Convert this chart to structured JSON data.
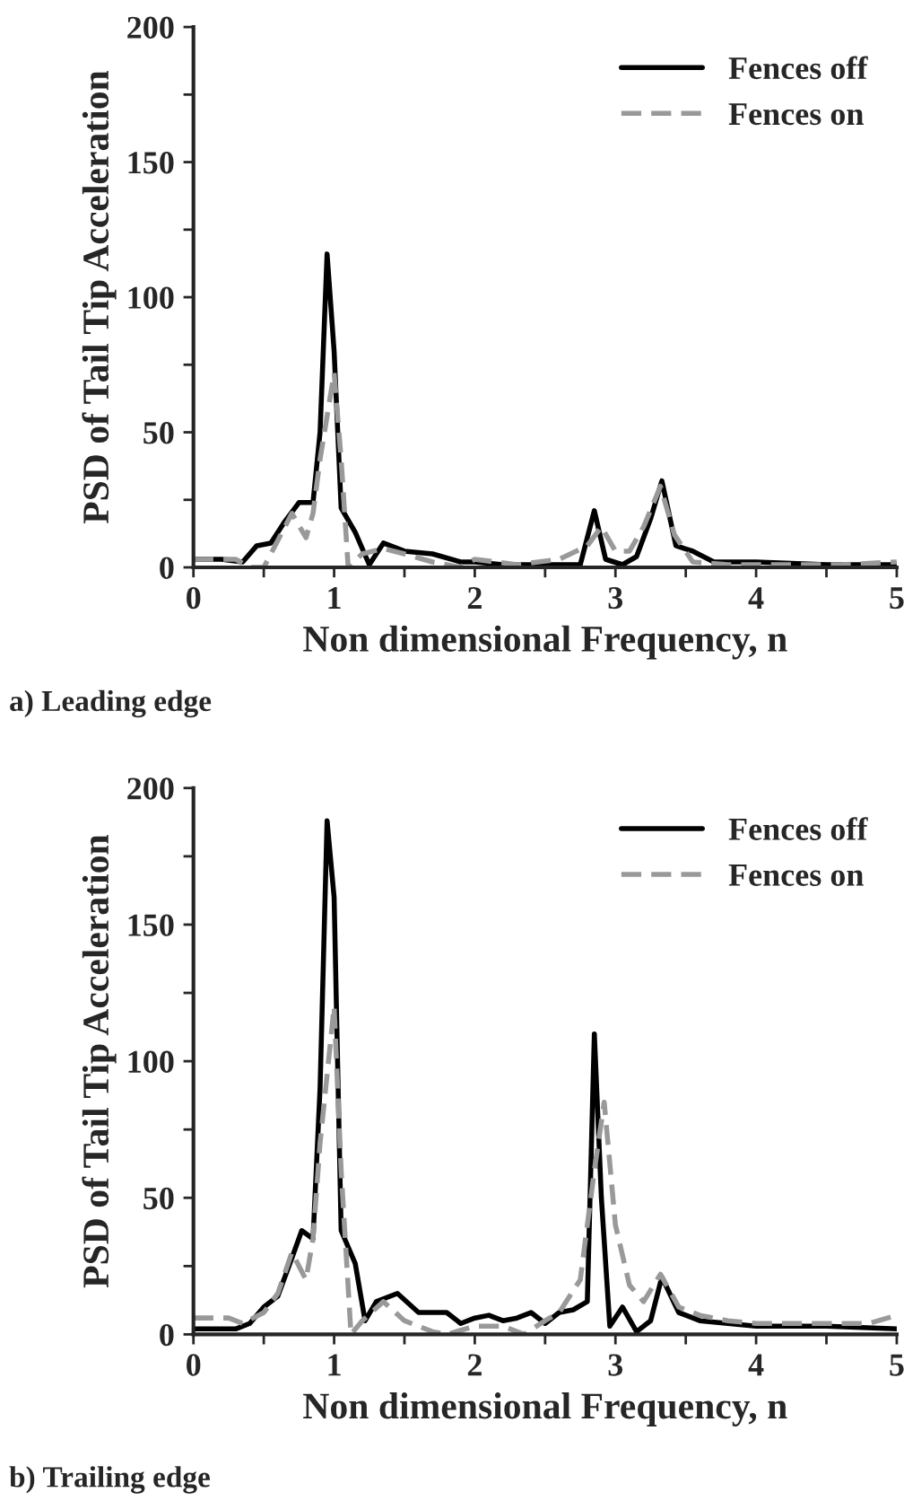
{
  "chart_data": [
    {
      "type": "line",
      "xlabel": "Non dimensional Frequency, n",
      "ylabel": "PSD of Tail Tip Acceleration",
      "annotations": [
        "a) Leading edge"
      ],
      "xlim": [
        0,
        5
      ],
      "ylim": [
        0,
        200
      ],
      "xticks": [
        0,
        {
          "value": 0.5,
          "label": null
        },
        1,
        {
          "value": 1.5,
          "label": null
        },
        2,
        {
          "value": 2.5,
          "label": null
        },
        3,
        {
          "value": 3.5,
          "label": null
        },
        4,
        {
          "value": 4.5,
          "label": null
        },
        5
      ],
      "yticks": [
        0,
        {
          "value": 25,
          "label": null
        },
        50,
        {
          "value": 75,
          "label": null
        },
        100,
        {
          "value": 125,
          "label": null
        },
        150,
        {
          "value": 175,
          "label": null
        },
        200
      ],
      "legend": "top right",
      "grid": false,
      "series": [
        {
          "name": "Fences off",
          "color": "#000000",
          "line_style": "solid",
          "x": [
            0,
            0.2,
            0.35,
            0.45,
            0.55,
            0.65,
            0.75,
            0.85,
            0.9,
            0.95,
            1.0,
            1.05,
            1.15,
            1.25,
            1.35,
            1.5,
            1.7,
            1.9,
            2.0,
            2.2,
            2.5,
            2.75,
            2.85,
            2.93,
            3.05,
            3.15,
            3.25,
            3.33,
            3.43,
            3.55,
            3.7,
            4.0,
            4.5,
            5.0
          ],
          "values": [
            3,
            3,
            2,
            8,
            9,
            17,
            24,
            24,
            50,
            116,
            80,
            22,
            13,
            1,
            9,
            6,
            5,
            2,
            2,
            1,
            1,
            1,
            21,
            3,
            1,
            4,
            18,
            32,
            8,
            6,
            2,
            2,
            1,
            1
          ]
        },
        {
          "name": "Fences on",
          "color": "#999999",
          "line_style": "dashed",
          "x": [
            0,
            0.3,
            0.4,
            0.5,
            0.6,
            0.7,
            0.8,
            0.85,
            0.9,
            1.0,
            1.05,
            1.1,
            1.2,
            1.35,
            1.5,
            1.7,
            1.9,
            2.0,
            2.3,
            2.6,
            2.8,
            2.9,
            3.0,
            3.1,
            3.2,
            3.32,
            3.42,
            3.55,
            3.8,
            4.2,
            4.6,
            5.0
          ],
          "values": [
            3,
            3,
            0,
            0,
            10,
            20,
            11,
            20,
            40,
            72,
            40,
            0,
            5,
            7,
            5,
            2,
            0,
            3,
            1,
            3,
            8,
            15,
            6,
            6,
            15,
            30,
            12,
            2,
            1,
            1,
            1,
            2
          ]
        }
      ]
    },
    {
      "type": "line",
      "xlabel": "Non dimensional Frequency, n",
      "ylabel": "PSD of Tail Tip Acceleration",
      "annotations": [
        "b) Trailing edge"
      ],
      "xlim": [
        0,
        5
      ],
      "ylim": [
        0,
        200
      ],
      "xticks": [
        0,
        {
          "value": 0.5,
          "label": null
        },
        1,
        {
          "value": 1.5,
          "label": null
        },
        2,
        {
          "value": 2.5,
          "label": null
        },
        3,
        {
          "value": 3.5,
          "label": null
        },
        4,
        {
          "value": 4.5,
          "label": null
        },
        5
      ],
      "yticks": [
        0,
        {
          "value": 25,
          "label": null
        },
        50,
        {
          "value": 75,
          "label": null
        },
        100,
        {
          "value": 125,
          "label": null
        },
        150,
        {
          "value": 175,
          "label": null
        },
        200
      ],
      "legend": "top right",
      "grid": false,
      "series": [
        {
          "name": "Fences off",
          "color": "#000000",
          "line_style": "solid",
          "x": [
            0,
            0.3,
            0.4,
            0.5,
            0.6,
            0.7,
            0.77,
            0.85,
            0.9,
            0.95,
            1.0,
            1.05,
            1.15,
            1.22,
            1.3,
            1.45,
            1.6,
            1.8,
            1.9,
            2.0,
            2.1,
            2.2,
            2.3,
            2.4,
            2.5,
            2.6,
            2.7,
            2.8,
            2.85,
            2.9,
            2.96,
            3.05,
            3.15,
            3.25,
            3.33,
            3.45,
            3.6,
            3.8,
            4.0,
            4.5,
            5.0
          ],
          "values": [
            2,
            2,
            4,
            10,
            14,
            28,
            38,
            35,
            90,
            188,
            160,
            38,
            26,
            5,
            12,
            15,
            8,
            8,
            4,
            6,
            7,
            5,
            6,
            8,
            4,
            8,
            9,
            12,
            110,
            50,
            3,
            10,
            1,
            5,
            21,
            8,
            5,
            4,
            3,
            3,
            2
          ]
        },
        {
          "name": "Fences on",
          "color": "#999999",
          "line_style": "dashed",
          "x": [
            0,
            0.25,
            0.35,
            0.5,
            0.6,
            0.7,
            0.8,
            0.85,
            0.9,
            1.0,
            1.05,
            1.12,
            1.2,
            1.35,
            1.5,
            1.7,
            1.8,
            2.0,
            2.2,
            2.35,
            2.5,
            2.6,
            2.75,
            2.85,
            2.92,
            3.0,
            3.1,
            3.2,
            3.32,
            3.45,
            3.6,
            3.8,
            4.0,
            4.5,
            4.8,
            5.0
          ],
          "values": [
            6,
            6,
            4,
            8,
            15,
            30,
            20,
            35,
            70,
            120,
            60,
            0,
            5,
            12,
            5,
            1,
            0,
            3,
            3,
            0,
            5,
            8,
            20,
            60,
            85,
            40,
            18,
            12,
            22,
            10,
            7,
            5,
            4,
            4,
            4,
            7
          ]
        }
      ]
    }
  ]
}
